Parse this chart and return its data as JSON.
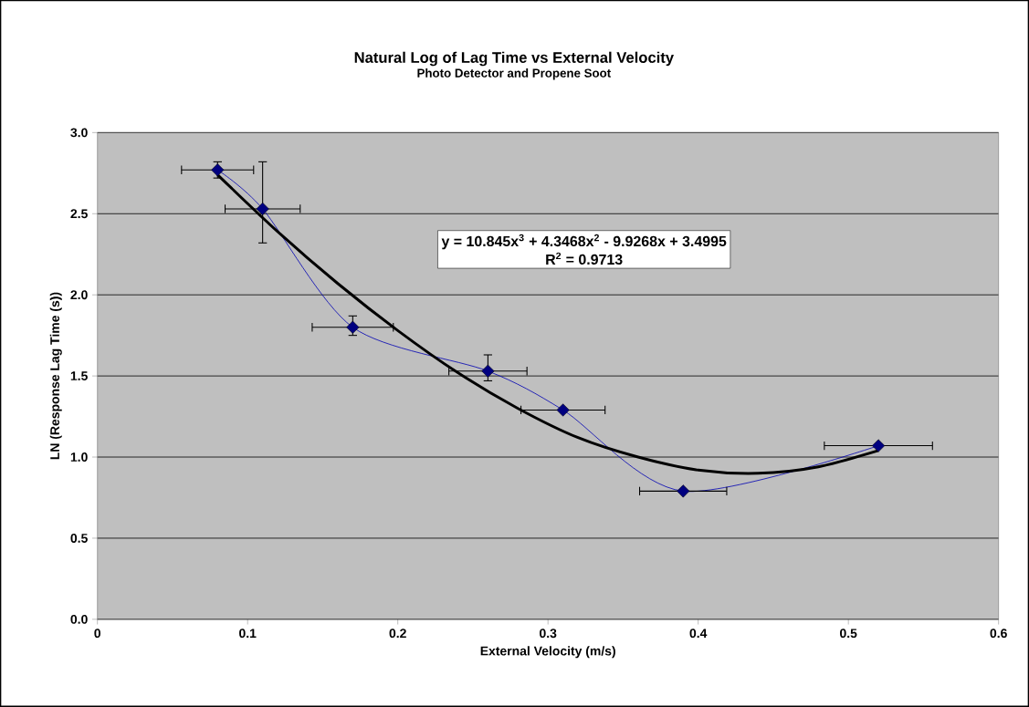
{
  "chart_data": {
    "type": "scatter",
    "title": "Natural Log of Lag Time vs External Velocity",
    "subtitle": "Photo Detector and Propene Soot",
    "xlabel": "External Velocity (m/s)",
    "ylabel": "LN (Response Lag Time (s))",
    "series": [
      {
        "type": "line",
        "color": "#000080",
        "marker": "diamond",
        "x": [
          0.08,
          0.11,
          0.17,
          0.26,
          0.31,
          0.39,
          0.52
        ],
        "values": [
          2.77,
          2.53,
          1.8,
          1.53,
          1.29,
          0.79,
          1.07
        ],
        "errors": [
          [
            2.72,
            2.82
          ],
          [
            2.32,
            2.82
          ],
          [
            1.75,
            1.87
          ],
          [
            1.47,
            1.63
          ],
          null,
          null,
          null
        ],
        "xerrors": [
          0.024,
          0.025,
          0.027,
          0.026,
          0.028,
          0.029,
          0.036
        ]
      },
      {
        "type": "line",
        "color": "#000000",
        "marker": "none",
        "x": [
          0.08,
          0.12,
          0.16,
          0.2,
          0.24,
          0.28,
          0.32,
          0.36,
          0.4,
          0.44,
          0.48,
          0.52
        ],
        "values": [
          2.74,
          2.39,
          2.07,
          1.78,
          1.52,
          1.3,
          1.12,
          1.0,
          0.92,
          0.9,
          0.94,
          1.04
        ]
      }
    ],
    "annotations": [
      "y = 10.845x$^{3}$ + 4.3468x$^{2}$ - 9.9268x + 3.4995",
      "R$^{2}$ = 0.9713"
    ],
    "xlim": [
      0,
      0.6
    ],
    "xticks": [
      0,
      0.1,
      0.2,
      0.3,
      0.4,
      0.5,
      0.6
    ],
    "ylim": [
      0,
      3
    ],
    "yticks": [
      {
        "value": 0,
        "label": "0.0"
      },
      {
        "value": 0.5,
        "label": "0.5"
      },
      {
        "value": 1,
        "label": "1.0"
      },
      {
        "value": 1.5,
        "label": "1.5"
      },
      {
        "value": 2,
        "label": "2.0"
      },
      {
        "value": 2.5,
        "label": "2.5"
      },
      {
        "value": 3,
        "label": "3.0"
      }
    ],
    "grid": "y"
  }
}
